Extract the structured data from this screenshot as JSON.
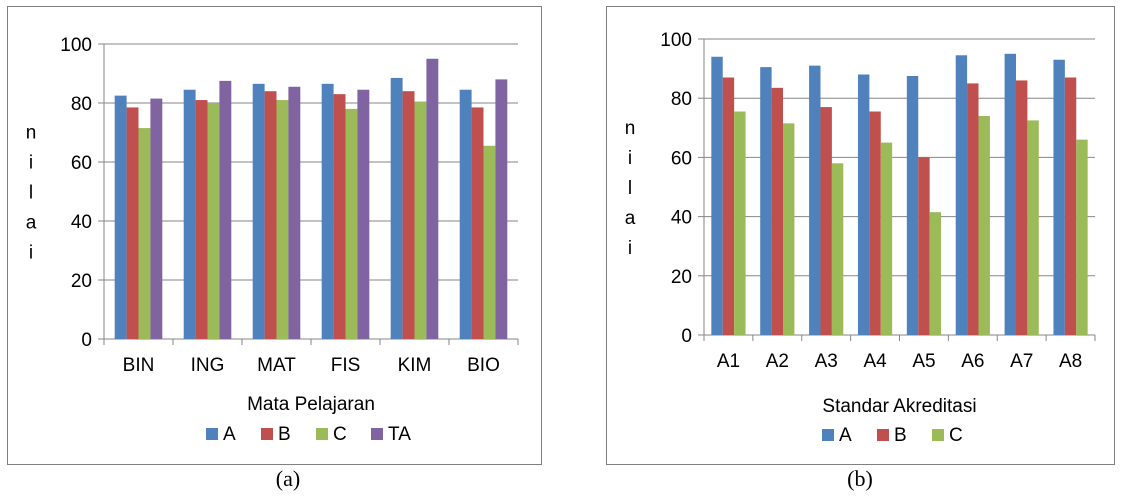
{
  "chart_data": [
    {
      "type": "bar",
      "caption": "(a)",
      "xlabel": "Mata Pelajaran",
      "ylabel": "nilai",
      "ylim": [
        0,
        100
      ],
      "yticks": [
        "0",
        "20",
        "40",
        "60",
        "80",
        "100"
      ],
      "grid": true,
      "legend_position": "bottom",
      "categories": [
        "BIN",
        "ING",
        "MAT",
        "FIS",
        "KIM",
        "BIO"
      ],
      "series": [
        {
          "name": "A",
          "color": "#4f81bd",
          "values": [
            82.5,
            84.5,
            86.5,
            86.5,
            88.5,
            84.5
          ]
        },
        {
          "name": "B",
          "color": "#c0504d",
          "values": [
            78.5,
            81,
            84,
            83,
            84,
            78.5
          ]
        },
        {
          "name": "C",
          "color": "#9bbb59",
          "values": [
            71.5,
            80,
            81,
            78,
            80.5,
            65.5
          ]
        },
        {
          "name": "TA",
          "color": "#8064a2",
          "values": [
            81.5,
            87.5,
            85.5,
            84.5,
            95,
            88
          ]
        }
      ]
    },
    {
      "type": "bar",
      "caption": "(b)",
      "xlabel": "Standar Akreditasi",
      "ylabel": "nilai",
      "ylim": [
        0,
        100
      ],
      "yticks": [
        "0",
        "20",
        "40",
        "60",
        "80",
        "100"
      ],
      "grid": true,
      "legend_position": "bottom",
      "categories": [
        "A1",
        "A2",
        "A3",
        "A4",
        "A5",
        "A6",
        "A7",
        "A8"
      ],
      "series": [
        {
          "name": "A",
          "color": "#4f81bd",
          "values": [
            94,
            90.5,
            91,
            88,
            87.5,
            94.5,
            95,
            93
          ]
        },
        {
          "name": "B",
          "color": "#c0504d",
          "values": [
            87,
            83.5,
            77,
            75.5,
            60,
            85,
            86,
            87
          ]
        },
        {
          "name": "C",
          "color": "#9bbb59",
          "values": [
            75.5,
            71.5,
            58,
            65,
            41.5,
            74,
            72.5,
            66
          ]
        }
      ]
    }
  ]
}
